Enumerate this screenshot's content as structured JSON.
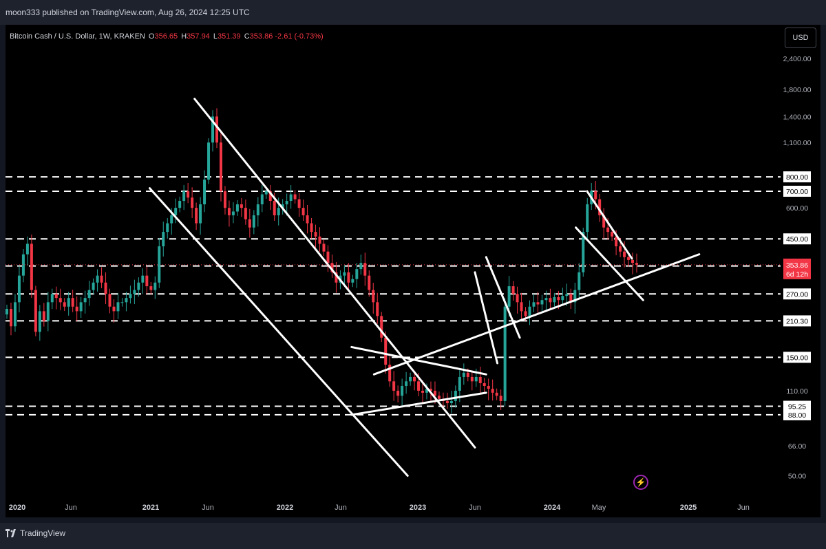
{
  "header": {
    "published_text": "moon333 published on TradingView.com, Aug 26, 2024 12:25 UTC"
  },
  "legend": {
    "symbol": "Bitcoin Cash / U.S. Dollar, 1W, KRAKEN",
    "open_label": "O",
    "open": "356.65",
    "high_label": "H",
    "high": "357.94",
    "low_label": "L",
    "low": "351.39",
    "close_label": "C",
    "close": "353.86",
    "change": "-2.61 (-0.73%)"
  },
  "currency_button": "USD",
  "price_tag": {
    "price": "353.86",
    "countdown": "6d 12h"
  },
  "footer": {
    "brand": "TradingView"
  },
  "colors": {
    "up": "#26a69a",
    "down": "#f23645",
    "background": "#000000",
    "drawing": "#ffffff"
  },
  "chart_data": {
    "type": "candlestick",
    "symbol": "BCHUSD",
    "interval": "1W",
    "log_scale": true,
    "grid": false,
    "x_axis_labels": [
      "2020",
      "Jun",
      "2021",
      "Jun",
      "2022",
      "Jun",
      "2023",
      "Jun",
      "2024",
      "May",
      "2025",
      "Jun"
    ],
    "y_axis_labels": [
      "2,400.00",
      "1,800.00",
      "1,400.00",
      "1,100.00",
      "600.00",
      "110.00",
      "66.00",
      "50.00"
    ],
    "ylim": [
      44,
      2800
    ],
    "horizontal_levels": [
      "800.00",
      "700.00",
      "450.00",
      "350.00",
      "270.00",
      "210.30",
      "150.00",
      "95.25",
      "88.00"
    ],
    "weekly_closes": [
      235,
      200,
      250,
      320,
      390,
      430,
      280,
      190,
      230,
      210,
      250,
      270,
      260,
      250,
      240,
      260,
      240,
      230,
      250,
      260,
      280,
      300,
      320,
      300,
      270,
      240,
      230,
      250,
      250,
      260,
      270,
      280,
      300,
      320,
      290,
      280,
      300,
      420,
      480,
      520,
      560,
      600,
      640,
      700,
      660,
      600,
      520,
      620,
      780,
      1100,
      1400,
      1100,
      700,
      600,
      560,
      580,
      620,
      600,
      540,
      500,
      560,
      620,
      680,
      700,
      640,
      560,
      600,
      620,
      640,
      680,
      650,
      600,
      560,
      520,
      480,
      460,
      430,
      400,
      360,
      330,
      300,
      320,
      330,
      300,
      310,
      340,
      360,
      320,
      280,
      250,
      220,
      180,
      140,
      120,
      110,
      105,
      115,
      120,
      125,
      120,
      110,
      108,
      112,
      110,
      105,
      102,
      100,
      98,
      100,
      110,
      125,
      130,
      125,
      120,
      125,
      118,
      115,
      112,
      108,
      105,
      100,
      240,
      290,
      270,
      250,
      230,
      220,
      240,
      250,
      245,
      255,
      260,
      250,
      262,
      255,
      265,
      270,
      250,
      280,
      330,
      480,
      620,
      700,
      650,
      560,
      500,
      480,
      460,
      420,
      400,
      380,
      370,
      360,
      354
    ],
    "trend_lines": [
      {
        "from": [
          "2021-05",
          1650
        ],
        "to": [
          "2023-06",
          65
        ]
      },
      {
        "from": [
          "2021-01",
          720
        ],
        "to": [
          "2022-12",
          50
        ]
      },
      {
        "from": [
          "2022-07",
          88
        ],
        "to": [
          "2023-07",
          108
        ]
      },
      {
        "from": [
          "2022-07",
          165
        ],
        "to": [
          "2023-07",
          128
        ]
      },
      {
        "from": [
          "2022-09",
          128
        ],
        "to": [
          "2025-02",
          390
        ]
      },
      {
        "from": [
          "2023-07",
          380
        ],
        "to": [
          "2023-10",
          180
        ]
      },
      {
        "from": [
          "2023-06",
          330
        ],
        "to": [
          "2023-08",
          142
        ]
      },
      {
        "from": [
          "2024-04",
          700
        ],
        "to": [
          "2024-08",
          375
        ]
      },
      {
        "from": [
          "2024-03",
          500
        ],
        "to": [
          "2024-09",
          255
        ]
      }
    ]
  }
}
